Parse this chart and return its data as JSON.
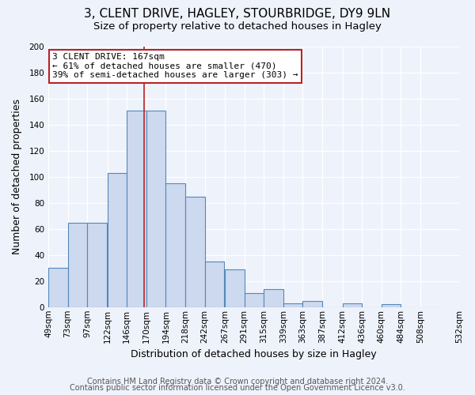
{
  "title": "3, CLENT DRIVE, HAGLEY, STOURBRIDGE, DY9 9LN",
  "subtitle": "Size of property relative to detached houses in Hagley",
  "xlabel": "Distribution of detached houses by size in Hagley",
  "ylabel": "Number of detached properties",
  "bar_left_edges": [
    49,
    73,
    97,
    122,
    146,
    170,
    194,
    218,
    242,
    267,
    291,
    315,
    339,
    363,
    387,
    412,
    436,
    460,
    484,
    508
  ],
  "bar_heights": [
    30,
    65,
    65,
    103,
    151,
    151,
    95,
    85,
    35,
    29,
    11,
    14,
    3,
    5,
    0,
    3,
    0,
    2,
    0,
    0
  ],
  "bin_width": 24,
  "tick_labels": [
    "49sqm",
    "73sqm",
    "97sqm",
    "122sqm",
    "146sqm",
    "170sqm",
    "194sqm",
    "218sqm",
    "242sqm",
    "267sqm",
    "291sqm",
    "315sqm",
    "339sqm",
    "363sqm",
    "387sqm",
    "412sqm",
    "436sqm",
    "460sqm",
    "484sqm",
    "508sqm",
    "532sqm"
  ],
  "bar_color": "#ccd9ee",
  "bar_edge_color": "#5588bb",
  "vline_x": 167,
  "vline_color": "#bb2222",
  "annotation_text": "3 CLENT DRIVE: 167sqm\n← 61% of detached houses are smaller (470)\n39% of semi-detached houses are larger (303) →",
  "annotation_box_color": "#ffffff",
  "annotation_box_edge": "#bb2222",
  "ylim": [
    0,
    200
  ],
  "yticks": [
    0,
    20,
    40,
    60,
    80,
    100,
    120,
    140,
    160,
    180,
    200
  ],
  "footer_line1": "Contains HM Land Registry data © Crown copyright and database right 2024.",
  "footer_line2": "Contains public sector information licensed under the Open Government Licence v3.0.",
  "bg_color": "#eef2fb",
  "plot_bg_color": "#eef2fb",
  "title_fontsize": 11,
  "subtitle_fontsize": 9.5,
  "axis_label_fontsize": 9,
  "tick_fontsize": 7.5,
  "annotation_fontsize": 8,
  "footer_fontsize": 7
}
